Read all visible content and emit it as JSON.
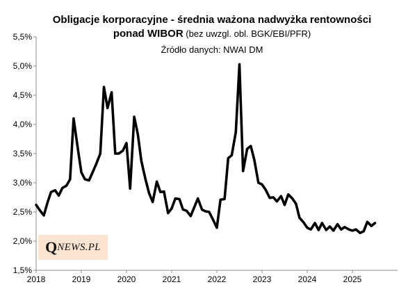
{
  "title_line1": "Obligacje korporacyjne  - średnia ważona nadwyżka rentowności",
  "title_line2_bold": "ponad  WIBOR",
  "title_line2_note": " (bez uwzgl. obl. BGK/EBI/PFR)",
  "source": "Źródło danych: NWAI DM",
  "logo": {
    "q": "Q",
    "rest": "NEWS.PL",
    "background": "#fbe4d2"
  },
  "chart_data": {
    "type": "line",
    "title": "Obligacje korporacyjne  - średnia ważona nadwyżka rentowności ponad  WIBOR (bez uwzgl. obl. BGK/EBI/PFR)",
    "subtitle": "Źródło danych: NWAI DM",
    "xlabel": "",
    "ylabel": "",
    "ylim": [
      1.5,
      5.5
    ],
    "xlim": [
      2018.0,
      2026.0
    ],
    "y_ticks": [
      "1,5%",
      "2,0%",
      "2,5%",
      "3,0%",
      "3,5%",
      "4,0%",
      "4,5%",
      "5,0%",
      "5,5%"
    ],
    "x_ticks": [
      "2018",
      "2019",
      "2020",
      "2021",
      "2022",
      "2023",
      "2024",
      "2025"
    ],
    "grid": false,
    "line_color": "#000000",
    "series": [
      {
        "x": [
          2018.0,
          2018.08,
          2018.17,
          2018.25,
          2018.33,
          2018.42,
          2018.5,
          2018.58,
          2018.67,
          2018.75,
          2018.83,
          2018.92,
          2019.0,
          2019.08,
          2019.17,
          2019.25,
          2019.33,
          2019.42,
          2019.5,
          2019.58,
          2019.67,
          2019.75,
          2019.83,
          2019.92,
          2020.0,
          2020.08,
          2020.17,
          2020.25,
          2020.33,
          2020.42,
          2020.5,
          2020.58,
          2020.67,
          2020.75,
          2020.83,
          2020.92,
          2021.0,
          2021.08,
          2021.17,
          2021.25,
          2021.33,
          2021.42,
          2021.5,
          2021.58,
          2021.67,
          2021.75,
          2021.83,
          2021.92,
          2022.0,
          2022.08,
          2022.17,
          2022.25,
          2022.33,
          2022.42,
          2022.5,
          2022.58,
          2022.67,
          2022.75,
          2022.83,
          2022.92,
          2023.0,
          2023.08,
          2023.17,
          2023.25,
          2023.33,
          2023.42,
          2023.5,
          2023.58,
          2023.67,
          2023.75,
          2023.83,
          2023.92,
          2024.0,
          2024.08,
          2024.17,
          2024.25,
          2024.33,
          2024.42,
          2024.5,
          2024.58,
          2024.67,
          2024.75,
          2024.83,
          2024.92,
          2025.0,
          2025.08,
          2025.17,
          2025.25,
          2025.33,
          2025.42,
          2025.5
        ],
        "values": [
          2.62,
          2.53,
          2.44,
          2.66,
          2.84,
          2.87,
          2.78,
          2.91,
          2.95,
          3.06,
          4.1,
          3.6,
          3.18,
          3.06,
          3.04,
          3.18,
          3.32,
          3.5,
          4.64,
          4.28,
          4.55,
          3.5,
          3.5,
          3.55,
          3.68,
          2.9,
          4.13,
          3.83,
          3.37,
          3.06,
          2.82,
          2.67,
          3.02,
          2.84,
          2.85,
          2.48,
          2.56,
          2.73,
          2.72,
          2.54,
          2.52,
          2.43,
          2.58,
          2.73,
          2.54,
          2.51,
          2.5,
          2.36,
          2.23,
          2.71,
          2.72,
          3.42,
          3.47,
          3.87,
          5.03,
          3.2,
          3.58,
          3.63,
          3.39,
          3.0,
          2.97,
          2.88,
          2.74,
          2.75,
          2.68,
          2.77,
          2.62,
          2.8,
          2.73,
          2.64,
          2.4,
          2.32,
          2.23,
          2.2,
          2.31,
          2.19,
          2.31,
          2.19,
          2.25,
          2.18,
          2.29,
          2.2,
          2.24,
          2.2,
          2.18,
          2.2,
          2.14,
          2.17,
          2.33,
          2.26,
          2.31
        ]
      }
    ]
  }
}
